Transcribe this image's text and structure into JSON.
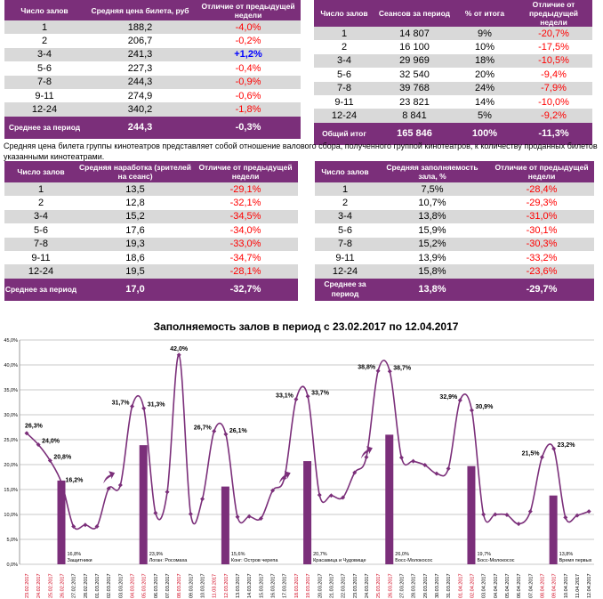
{
  "table_price": {
    "headers": [
      "Число залов",
      "Средняя цена билета, руб",
      "Отличие от предыдущей недели"
    ],
    "rows": [
      [
        "1",
        "188,2",
        "-4,0%"
      ],
      [
        "2",
        "206,7",
        "-0,2%"
      ],
      [
        "3-4",
        "241,3",
        "+1,2%"
      ],
      [
        "5-6",
        "227,3",
        "-0,4%"
      ],
      [
        "7-8",
        "244,3",
        "-0,9%"
      ],
      [
        "9-11",
        "274,9",
        "-0,6%"
      ],
      [
        "12-24",
        "340,2",
        "-1,8%"
      ]
    ],
    "footer": [
      "Среднее за период",
      "244,3",
      "-0,3%"
    ]
  },
  "table_sessions": {
    "headers": [
      "Число залов",
      "Сеансов за период",
      "% от итога",
      "Отличие от предыдущей недели"
    ],
    "rows": [
      [
        "1",
        "14 807",
        "9%",
        "-20,7%"
      ],
      [
        "2",
        "16 100",
        "10%",
        "-17,5%"
      ],
      [
        "3-4",
        "29 969",
        "18%",
        "-10,5%"
      ],
      [
        "5-6",
        "32 540",
        "20%",
        "-9,4%"
      ],
      [
        "7-8",
        "39 768",
        "24%",
        "-7,9%"
      ],
      [
        "9-11",
        "23 821",
        "14%",
        "-10,0%"
      ],
      [
        "12-24",
        "8 841",
        "5%",
        "-9,2%"
      ]
    ],
    "footer": [
      "Общий итог",
      "165 846",
      "100%",
      "-11,3%"
    ]
  },
  "note": "Средняя цена билета группы кинотеатров представляет собой отношение валового сбора, полученного группой кинотеатров, к количеству проданных билетов указанными кинотеатрами.",
  "table_viewers": {
    "headers": [
      "Число залов",
      "Средняя наработка (зрителей на сеанс)",
      "Отличие от предыдущей недели"
    ],
    "rows": [
      [
        "1",
        "13,5",
        "-29,1%"
      ],
      [
        "2",
        "12,8",
        "-32,1%"
      ],
      [
        "3-4",
        "15,2",
        "-34,5%"
      ],
      [
        "5-6",
        "17,6",
        "-34,0%"
      ],
      [
        "7-8",
        "19,3",
        "-33,0%"
      ],
      [
        "9-11",
        "18,6",
        "-34,7%"
      ],
      [
        "12-24",
        "19,5",
        "-28,1%"
      ]
    ],
    "footer": [
      "Среднее за период",
      "17,0",
      "-32,7%"
    ]
  },
  "table_occupancy": {
    "headers": [
      "Число залов",
      "Средняя заполняемость зала, %",
      "Отличие от предыдущей недели"
    ],
    "rows": [
      [
        "1",
        "7,5%",
        "-28,4%"
      ],
      [
        "2",
        "10,7%",
        "-29,3%"
      ],
      [
        "3-4",
        "13,8%",
        "-31,0%"
      ],
      [
        "5-6",
        "15,9%",
        "-30,1%"
      ],
      [
        "7-8",
        "15,2%",
        "-30,3%"
      ],
      [
        "9-11",
        "13,9%",
        "-33,2%"
      ],
      [
        "12-24",
        "15,8%",
        "-23,6%"
      ]
    ],
    "footer": [
      "Среднее за период",
      "13,8%",
      "-29,7%"
    ]
  },
  "colors": {
    "header": "#7b2f7a",
    "line": "#7b2f7a",
    "negative": "#ff0000",
    "positive": "#0000ff",
    "weekend": "#d0021b",
    "stripe": "#d9d9d9"
  },
  "chart_data": {
    "type": "line+bar",
    "title": "Заполняемость залов в период с 23.02.2017 по 12.04.2017",
    "ylim": [
      0,
      45
    ],
    "yticks": [
      "0,0%",
      "5,0%",
      "10,0%",
      "15,0%",
      "20,0%",
      "25,0%",
      "30,0%",
      "35,0%",
      "40,0%",
      "45,0%"
    ],
    "x": [
      "23.02.2017",
      "24.02.2017",
      "25.02.2017",
      "26.02.2017",
      "27.02.2017",
      "28.02.2017",
      "01.03.2017",
      "02.03.2017",
      "03.03.2017",
      "04.03.2017",
      "05.03.2017",
      "06.03.2017",
      "07.03.2017",
      "08.03.2017",
      "09.03.2017",
      "10.03.2017",
      "11.03.2017",
      "12.03.2017",
      "13.03.2017",
      "14.03.2017",
      "15.03.2017",
      "16.03.2017",
      "17.03.2017",
      "18.03.2017",
      "19.03.2017",
      "20.03.2017",
      "21.03.2017",
      "22.03.2017",
      "23.03.2017",
      "24.03.2017",
      "25.03.2017",
      "26.03.2017",
      "27.03.2017",
      "28.03.2017",
      "29.03.2017",
      "30.03.2017",
      "31.03.2017",
      "01.04.2017",
      "02.04.2017",
      "03.04.2017",
      "04.04.2017",
      "05.04.2017",
      "06.04.2017",
      "07.04.2017",
      "08.04.2017",
      "09.04.2017",
      "10.04.2017",
      "11.04.2017",
      "12.04.2017"
    ],
    "weekend": [
      0,
      1,
      2,
      3,
      9,
      10,
      13,
      16,
      17,
      23,
      24,
      30,
      31,
      37,
      38,
      44,
      45
    ],
    "line": [
      26.3,
      24.0,
      20.8,
      16.2,
      7.6,
      7.9,
      7.6,
      15.2,
      15.9,
      31.7,
      31.3,
      10.3,
      14.5,
      42.0,
      10.1,
      13.1,
      26.7,
      26.1,
      9.5,
      9.6,
      9.2,
      14.8,
      17.3,
      33.1,
      33.7,
      13.9,
      13.8,
      13.4,
      18.4,
      21.5,
      38.8,
      38.7,
      21.4,
      20.7,
      19.9,
      18.2,
      19.2,
      32.9,
      30.9,
      10.0,
      10.0,
      9.9,
      8.1,
      10.6,
      21.5,
      23.2,
      9.4,
      9.8,
      10.6
    ],
    "line_labels": {
      "0": "26,3%",
      "1": "24,0%",
      "2": "20,8%",
      "3": "16,2%",
      "9": "31,7%",
      "10": "31,3%",
      "13": "42,0%",
      "16": "26,7%",
      "17": "26,1%",
      "23": "33,1%",
      "24": "33,7%",
      "30": "38,8%",
      "31": "38,7%",
      "37": "32,9%",
      "38": "30,9%",
      "44": "21,5%",
      "45": "23,2%"
    },
    "bars": [
      {
        "index": 3,
        "value": 16.8,
        "label": "16,8%",
        "film": "Защитники"
      },
      {
        "index": 10,
        "value": 23.9,
        "label": "23,9%",
        "film": "Логан: Росомаха"
      },
      {
        "index": 17,
        "value": 15.6,
        "label": "15,6%",
        "film": "Конг: Остров черепа"
      },
      {
        "index": 24,
        "value": 20.7,
        "label": "20,7%",
        "film": "Красавица и Чудовище"
      },
      {
        "index": 31,
        "value": 26.0,
        "label": "26,0%",
        "film": "Босс-Молокосос"
      },
      {
        "index": 38,
        "value": 19.7,
        "label": "19,7%",
        "film": "Босс-Молокосос"
      },
      {
        "index": 45,
        "value": 13.8,
        "label": "13,8%",
        "film": "Время первых"
      }
    ],
    "arrows": [
      7,
      22,
      29
    ]
  }
}
